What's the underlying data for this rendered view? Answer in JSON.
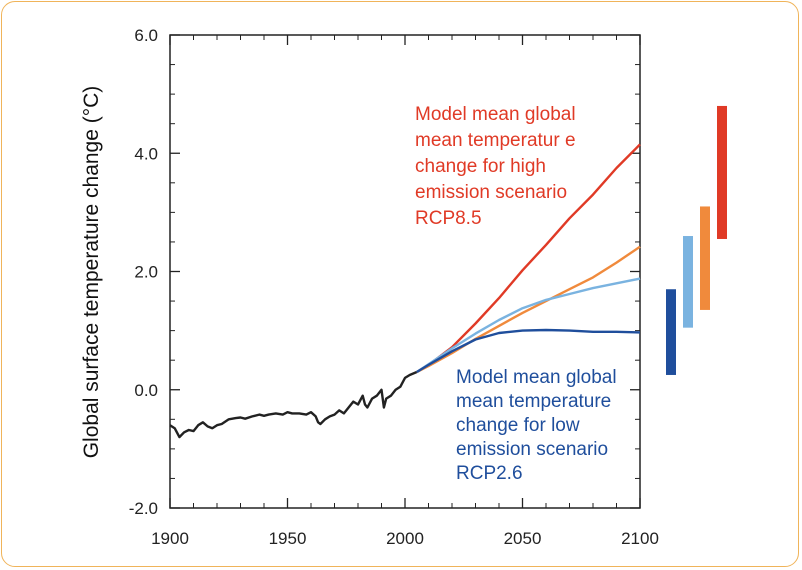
{
  "chart_data": {
    "type": "line",
    "ylabel": "Global surface temperature change (°C)",
    "xlim": [
      1900,
      2100
    ],
    "ylim": [
      -2.0,
      6.0
    ],
    "x_ticks": [
      "1900",
      "1950",
      "2000",
      "2050",
      "2100"
    ],
    "y_ticks": [
      "-2.0",
      "0.0",
      "2.0",
      "4.0",
      "6.0"
    ],
    "annotations": {
      "high": [
        "Model mean global",
        "mean temperatur e",
        "change for high",
        "emission scenario",
        "RCP8.5"
      ],
      "low": [
        "Model mean global",
        "mean temperature",
        "change for low",
        "emission scenario",
        "RCP2.6"
      ]
    },
    "colors": {
      "historical": "#222222",
      "rcp85": "#e03a26",
      "rcp60": "#f08a3c",
      "rcp45": "#7ab3e0",
      "rcp26": "#1f4e9c"
    },
    "series": [
      {
        "key": "historical",
        "x": [
          1900,
          1902,
          1904,
          1906,
          1908,
          1910,
          1912,
          1914,
          1916,
          1918,
          1920,
          1922,
          1925,
          1928,
          1930,
          1932,
          1935,
          1938,
          1940,
          1942,
          1945,
          1948,
          1950,
          1952,
          1955,
          1958,
          1960,
          1962,
          1963,
          1964,
          1966,
          1968,
          1970,
          1972,
          1974,
          1976,
          1978,
          1980,
          1982,
          1983,
          1984,
          1986,
          1988,
          1990,
          1991,
          1992,
          1994,
          1996,
          1998,
          2000,
          2002,
          2005
        ],
        "y": [
          -0.6,
          -0.65,
          -0.8,
          -0.72,
          -0.68,
          -0.7,
          -0.6,
          -0.55,
          -0.62,
          -0.65,
          -0.6,
          -0.58,
          -0.5,
          -0.48,
          -0.47,
          -0.49,
          -0.45,
          -0.42,
          -0.44,
          -0.42,
          -0.4,
          -0.42,
          -0.38,
          -0.4,
          -0.4,
          -0.42,
          -0.38,
          -0.45,
          -0.55,
          -0.58,
          -0.5,
          -0.45,
          -0.42,
          -0.35,
          -0.4,
          -0.3,
          -0.2,
          -0.25,
          -0.1,
          -0.25,
          -0.3,
          -0.15,
          -0.1,
          0.0,
          -0.3,
          -0.15,
          -0.1,
          0.0,
          0.05,
          0.2,
          0.25,
          0.3
        ]
      },
      {
        "key": "rcp85",
        "x": [
          2005,
          2010,
          2020,
          2030,
          2040,
          2050,
          2060,
          2070,
          2080,
          2090,
          2100
        ],
        "y": [
          0.3,
          0.42,
          0.72,
          1.12,
          1.55,
          2.02,
          2.45,
          2.9,
          3.3,
          3.75,
          4.15
        ]
      },
      {
        "key": "rcp60",
        "x": [
          2005,
          2010,
          2020,
          2030,
          2040,
          2050,
          2060,
          2070,
          2080,
          2090,
          2100
        ],
        "y": [
          0.3,
          0.4,
          0.62,
          0.86,
          1.08,
          1.3,
          1.5,
          1.7,
          1.9,
          2.15,
          2.42
        ]
      },
      {
        "key": "rcp45",
        "x": [
          2005,
          2010,
          2020,
          2030,
          2040,
          2050,
          2060,
          2070,
          2080,
          2090,
          2100
        ],
        "y": [
          0.3,
          0.43,
          0.7,
          0.95,
          1.18,
          1.38,
          1.52,
          1.62,
          1.72,
          1.8,
          1.88
        ]
      },
      {
        "key": "rcp26",
        "x": [
          2005,
          2010,
          2020,
          2030,
          2040,
          2050,
          2060,
          2070,
          2080,
          2090,
          2100
        ],
        "y": [
          0.3,
          0.42,
          0.65,
          0.85,
          0.96,
          1.0,
          1.01,
          1.0,
          0.98,
          0.98,
          0.97
        ]
      }
    ],
    "range_bars": [
      {
        "key": "rcp26",
        "low": 0.25,
        "high": 1.7
      },
      {
        "key": "rcp45",
        "low": 1.05,
        "high": 2.6
      },
      {
        "key": "rcp60",
        "low": 1.35,
        "high": 3.1
      },
      {
        "key": "rcp85",
        "low": 2.55,
        "high": 4.8
      }
    ]
  }
}
